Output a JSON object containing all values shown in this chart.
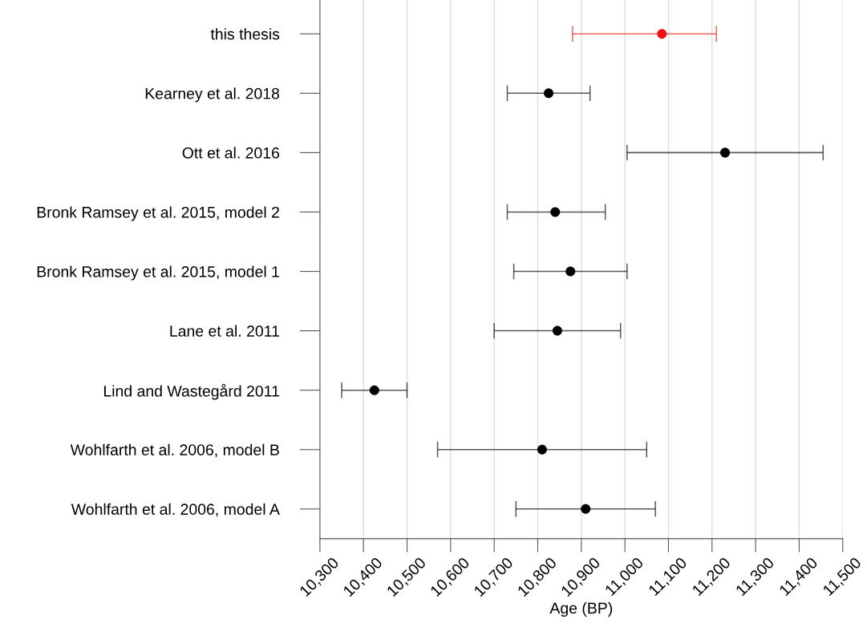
{
  "chart_data": {
    "type": "scatter",
    "orientation": "horizontal",
    "xlabel": "Age (BP)",
    "categories": [
      "this thesis",
      "Kearney et al. 2018",
      "Ott et al. 2016",
      "Bronk Ramsey et al. 2015, model 2",
      "Bronk Ramsey et al. 2015, model 1",
      "Lane et al. 2011",
      "Lind and Wastegård 2011",
      "Wohlfarth et al. 2006, model B",
      "Wohlfarth et al. 2006, model A"
    ],
    "values": [
      11085,
      10825,
      11230,
      10840,
      10875,
      10845,
      10425,
      10810,
      10910
    ],
    "errors": [
      [
        10880,
        11210
      ],
      95,
      225,
      [
        10730,
        10955
      ],
      130,
      145,
      75,
      240,
      160
    ],
    "colors": [
      "#ee1111",
      "#000000",
      "#000000",
      "#000000",
      "#000000",
      "#000000",
      "#000000",
      "#000000",
      "#000000"
    ],
    "xlim": [
      10300,
      11500
    ],
    "xticks": [
      {
        "value": 10300,
        "label": "10,300"
      },
      {
        "value": 10400,
        "label": "10,400"
      },
      {
        "value": 10500,
        "label": "10,500"
      },
      {
        "value": 10600,
        "label": "10,600"
      },
      {
        "value": 10700,
        "label": "10,700"
      },
      {
        "value": 10800,
        "label": "10,800"
      },
      {
        "value": 10900,
        "label": "10,900"
      },
      {
        "value": 11000,
        "label": "11,000"
      },
      {
        "value": 11100,
        "label": "11,100"
      },
      {
        "value": 11200,
        "label": "11,200"
      },
      {
        "value": 11300,
        "label": "11,300"
      },
      {
        "value": 11400,
        "label": "11,400"
      },
      {
        "value": 11500,
        "label": "11,500"
      }
    ],
    "grid": "x",
    "marker": "circle"
  }
}
